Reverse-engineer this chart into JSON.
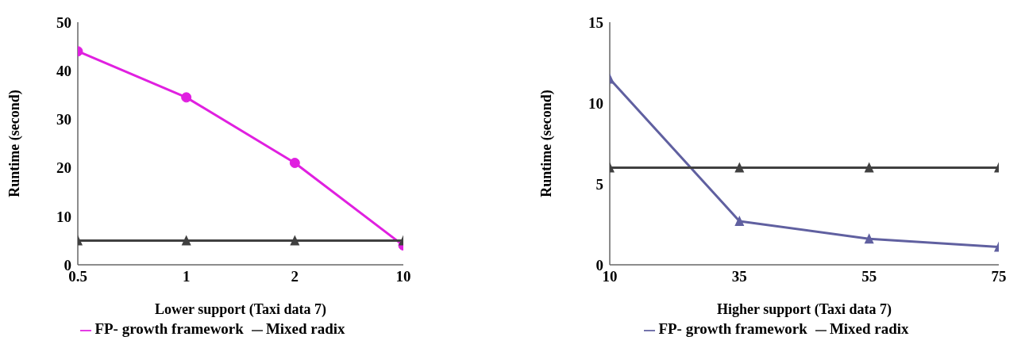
{
  "chart_data": [
    {
      "type": "line",
      "xlabel": "Lower support (Taxi data 7)",
      "ylabel": "Runtime (second)",
      "categories": [
        "0.5",
        "1",
        "2",
        "10"
      ],
      "ylim": [
        0,
        50
      ],
      "yticks": [
        0,
        10,
        20,
        30,
        40,
        50
      ],
      "grid": false,
      "legend": "bottom",
      "series": [
        {
          "name": "FP- growth framework",
          "color": "#e020e0",
          "marker": "circle",
          "values": [
            44,
            34.5,
            21,
            4
          ]
        },
        {
          "name": "Mixed radix",
          "color": "#404040",
          "marker": "triangle",
          "values": [
            5,
            5,
            5,
            5
          ]
        }
      ]
    },
    {
      "type": "line",
      "xlabel": "Higher support (Taxi data  7)",
      "ylabel": "Runtime (second)",
      "categories": [
        "10",
        "35",
        "55",
        "75"
      ],
      "ylim": [
        0,
        15
      ],
      "yticks": [
        0,
        5,
        10,
        15
      ],
      "grid": false,
      "legend": "bottom",
      "series": [
        {
          "name": "FP- growth framework",
          "color": "#6060a0",
          "marker": "triangle",
          "values": [
            11.5,
            2.7,
            1.6,
            1.1
          ]
        },
        {
          "name": "Mixed radix",
          "color": "#404040",
          "marker": "triangle",
          "values": [
            6,
            6,
            6,
            6
          ]
        }
      ]
    }
  ]
}
